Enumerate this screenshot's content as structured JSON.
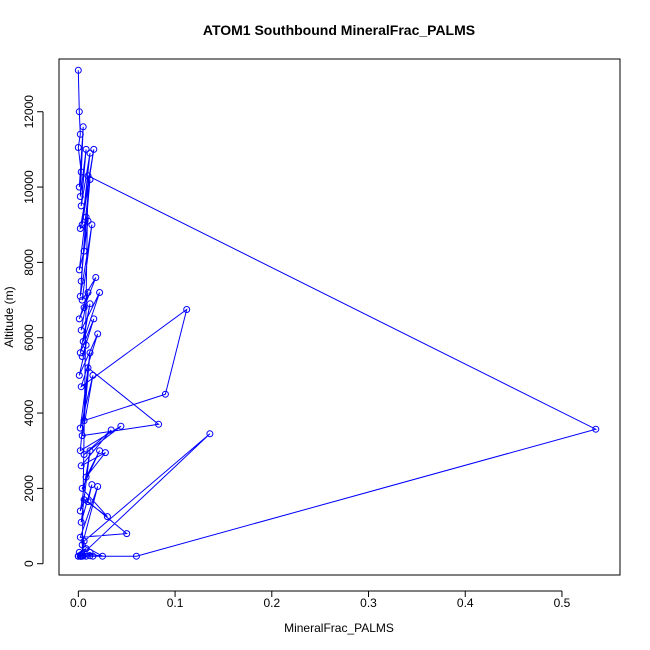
{
  "chart_data": {
    "type": "line",
    "title": "ATOM1 Southbound MineralFrac_PALMS",
    "xlabel": "MineralFrac_PALMS",
    "ylabel": "Altitude (m)",
    "xlim": [
      -0.02,
      0.56
    ],
    "ylim": [
      -300,
      13400
    ],
    "xticks": [
      0,
      0.1,
      0.2,
      0.3,
      0.4,
      0.5
    ],
    "xtick_labels": [
      "0.0",
      "0.1",
      "0.2",
      "0.3",
      "0.4",
      "0.5"
    ],
    "yticks": [
      0,
      2000,
      4000,
      6000,
      8000,
      10000,
      12000
    ],
    "ytick_labels": [
      "0",
      "2000",
      "4000",
      "6000",
      "8000",
      "10000",
      "12000"
    ],
    "grid": false,
    "legend": "none",
    "color": "#0000ff",
    "series": [
      {
        "x": [
          0.0,
          0.001,
          0.002,
          0.0,
          0.003,
          0.001,
          0.005,
          0.002,
          0.008,
          0.003,
          0.012,
          0.004,
          0.016,
          0.002,
          0.01,
          0.006,
          0.001,
          0.012,
          0.003,
          0.008,
          0.002,
          0.014,
          0.004,
          0.018,
          0.006,
          0.001,
          0.01,
          0.003,
          0.022,
          0.005,
          0.012,
          0.002,
          0.016,
          0.004,
          0.008,
          0.001,
          0.02,
          0.003,
          0.112,
          0.09,
          0.006,
          0.012,
          0.002,
          0.015,
          0.004,
          0.083,
          0.01,
          0.002,
          0.044,
          0.006,
          0.034,
          0.003,
          0.028,
          0.008,
          0.022,
          0.004,
          0.03,
          0.006,
          0.002,
          0.012,
          0.003,
          0.014,
          0.01,
          0.05,
          0.002,
          0.02,
          0.004,
          0.025,
          0.001,
          0.008,
          0.003,
          0.006,
          0.136,
          0.004,
          0.002,
          0.012,
          0.015,
          0.0,
          0.06,
          0.535,
          0.01,
          0.004,
          0.012,
          0.002,
          0.008,
          0.005,
          0.003,
          0.0
        ],
        "y": [
          13100,
          12000,
          11400,
          11050,
          10400,
          10000,
          11600,
          9750,
          11000,
          9500,
          10900,
          9000,
          11000,
          8900,
          9100,
          8300,
          7800,
          10200,
          7500,
          9200,
          7100,
          9000,
          7000,
          7600,
          6800,
          6500,
          7200,
          6200,
          7200,
          5900,
          6900,
          5600,
          6500,
          5500,
          5800,
          5000,
          6100,
          4700,
          6750,
          4500,
          3800,
          5600,
          3600,
          5000,
          3400,
          3700,
          5200,
          3000,
          3650,
          2900,
          3550,
          2600,
          2950,
          2300,
          3000,
          2000,
          1250,
          1700,
          1400,
          3000,
          1100,
          2100,
          1650,
          800,
          700,
          2050,
          500,
          200,
          300,
          400,
          200,
          600,
          3450,
          250,
          200,
          300,
          200,
          200,
          200,
          3570,
          10300,
          200,
          210,
          200,
          200,
          205,
          200,
          200
        ]
      }
    ]
  }
}
